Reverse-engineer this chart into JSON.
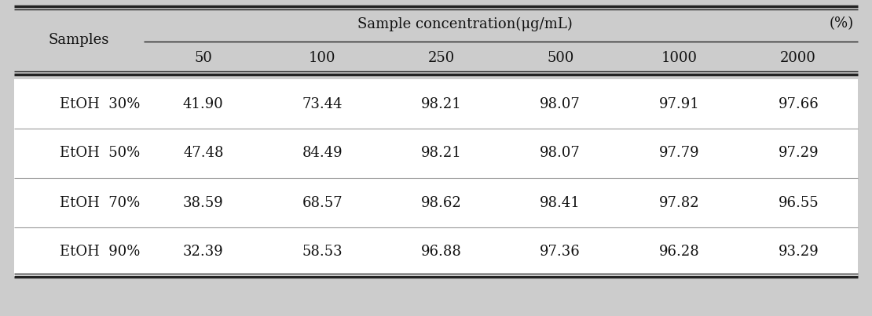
{
  "header_main": "Sample concentration(μg/mL)",
  "header_unit": "(%)",
  "col_header": "Samples",
  "concentrations": [
    "50",
    "100",
    "250",
    "500",
    "1000",
    "2000"
  ],
  "rows": [
    {
      "label": "EtOH  30%",
      "values": [
        "41.90",
        "73.44",
        "98.21",
        "98.07",
        "97.91",
        "97.66"
      ]
    },
    {
      "label": "EtOH  50%",
      "values": [
        "47.48",
        "84.49",
        "98.21",
        "98.07",
        "97.79",
        "97.29"
      ]
    },
    {
      "label": "EtOH  70%",
      "values": [
        "38.59",
        "68.57",
        "98.62",
        "98.41",
        "97.82",
        "96.55"
      ]
    },
    {
      "label": "EtOH  90%",
      "values": [
        "32.39",
        "58.53",
        "96.88",
        "97.36",
        "96.28",
        "93.29"
      ]
    }
  ],
  "gray_bg": "#cccccc",
  "white_bg": "#ffffff",
  "text_color": "#111111",
  "line_color": "#222222",
  "thin_line_color": "#999999",
  "font_size": 13,
  "header_font_size": 13
}
